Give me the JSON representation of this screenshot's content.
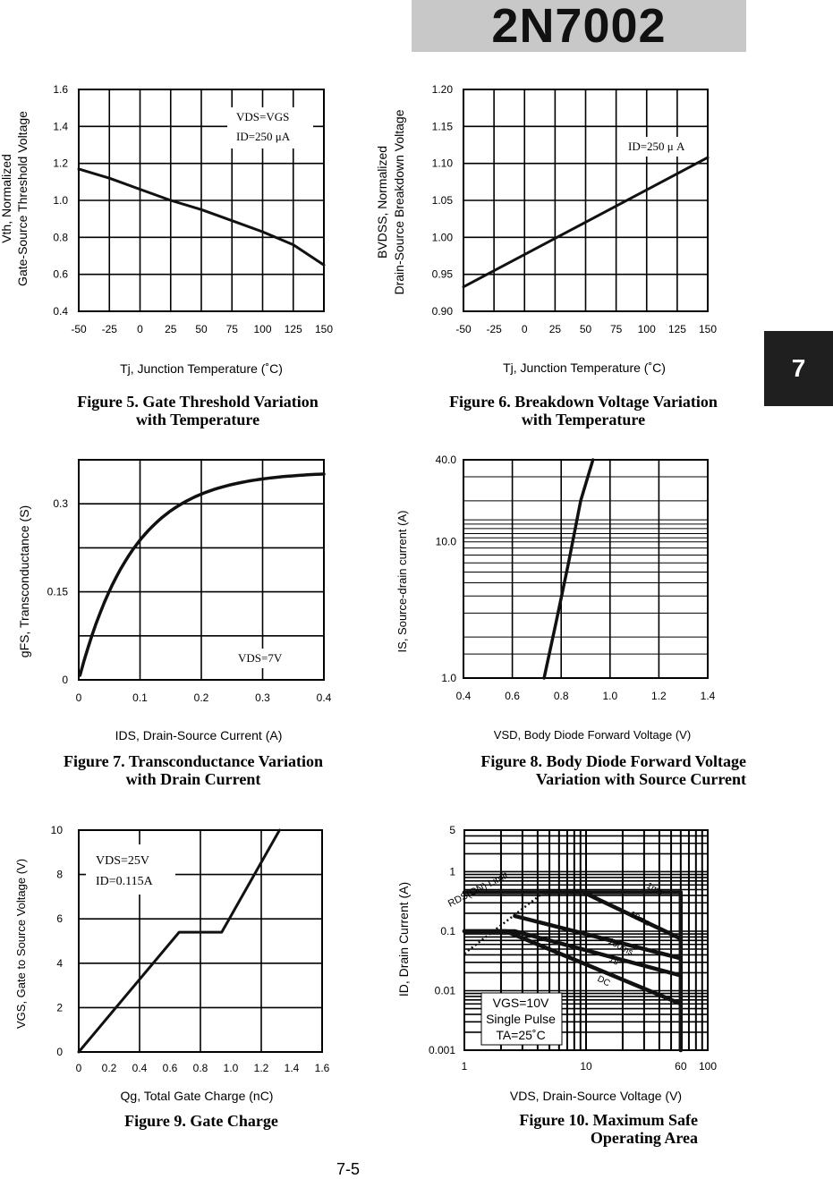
{
  "header": {
    "part_number": "2N7002",
    "section_tab": "7",
    "page_number": "7-5"
  },
  "figures": [
    {
      "caption_line1": "Figure 5. Gate Threshold Variation",
      "caption_line2": "with Temperature",
      "xlabel": "Tj, Junction Temperature (˚C)",
      "ylabel_line1": "Vth, Normalized",
      "ylabel_line2": "Gate-Source Threshold Voltage",
      "note_line1": "VDS=VGS",
      "note_line2": "ID=250 μA"
    },
    {
      "caption_line1": "Figure 6. Breakdown Voltage Variation",
      "caption_line2": "with Temperature",
      "xlabel": "Tj, Junction Temperature (˚C)",
      "ylabel_line1": "BVDSS, Normalized",
      "ylabel_line2": "Drain-Source Breakdown Voltage",
      "note_line1": "ID=250 μ A"
    },
    {
      "caption_line1": "Figure 7. Transconductance Variation",
      "caption_line2": "with Drain Current",
      "xlabel": "IDS, Drain-Source Current (A)",
      "ylabel_line1": "gFS, Transconductance (S)",
      "note_line1": "VDS=7V"
    },
    {
      "caption_line1": "Figure 8. Body Diode Forward Voltage",
      "caption_line2": "Variation with Source Current",
      "xlabel": "VSD, Body Diode Forward Voltage (V)",
      "ylabel_line1": "IS, Source-drain current (A)"
    },
    {
      "caption_line1": "Figure 9. Gate Charge",
      "caption_line2": "",
      "xlabel": "Qg, Total Gate Charge (nC)",
      "ylabel_line1": "VGS, Gate to Source Voltage (V)",
      "note_line1": "VDS=25V",
      "note_line2": "ID=0.115A"
    },
    {
      "caption_line1": "Figure 10. Maximum Safe",
      "caption_line2": "Operating Area",
      "xlabel": "VDS, Drain-Source Voltage (V)",
      "ylabel_line1": "ID, Drain Current (A)",
      "note_line1": "VGS=10V",
      "note_line2": "Single Pulse",
      "note_line3": "TA=25˚C",
      "curve_labels": [
        "RDS(ON) Limit",
        "1ms",
        "10ms",
        "100ms",
        "1s",
        "DC"
      ]
    }
  ],
  "chart_data": [
    {
      "type": "line",
      "title": "Figure 5. Gate Threshold Variation with Temperature",
      "x": [
        -50,
        -25,
        0,
        25,
        50,
        75,
        100,
        125,
        150
      ],
      "y": [
        1.17,
        1.12,
        1.06,
        1.0,
        0.95,
        0.89,
        0.83,
        0.76,
        0.65
      ],
      "xlim": [
        -50,
        150
      ],
      "ylim": [
        0.4,
        1.6
      ],
      "xticks": [
        "-50",
        "-25",
        "0",
        "25",
        "50",
        "75",
        "100",
        "125",
        "150"
      ],
      "yticks": [
        "0.4",
        "0.6",
        "0.8",
        "1.0",
        "1.2",
        "1.4",
        "1.6"
      ]
    },
    {
      "type": "line",
      "title": "Figure 6. Breakdown Voltage Variation with Temperature",
      "x": [
        -50,
        150
      ],
      "y": [
        0.933,
        1.108
      ],
      "xlim": [
        -50,
        150
      ],
      "ylim": [
        0.9,
        1.2
      ],
      "xticks": [
        "-50",
        "-25",
        "0",
        "25",
        "50",
        "75",
        "100",
        "125",
        "150"
      ],
      "yticks": [
        "0.90",
        "0.95",
        "1.00",
        "1.05",
        "1.10",
        "1.15",
        "1.20"
      ]
    },
    {
      "type": "line",
      "title": "Figure 7. Transconductance Variation with Drain Current",
      "x": [
        0.002,
        0.01,
        0.025,
        0.05,
        0.1,
        0.15,
        0.2,
        0.25,
        0.3,
        0.35,
        0.4
      ],
      "y": [
        0.0,
        0.05,
        0.1,
        0.155,
        0.228,
        0.27,
        0.3,
        0.32,
        0.337,
        0.347,
        0.351
      ],
      "xlim": [
        0,
        0.4
      ],
      "ylim": [
        0,
        0.375
      ],
      "xticks": [
        "0",
        "0.1",
        "0.2",
        "0.3",
        "0.4"
      ],
      "yticks": [
        "0",
        "0.15",
        "0.3"
      ]
    },
    {
      "type": "line",
      "title": "Figure 8. Body Diode Forward Voltage Variation with Source Current",
      "x": [
        0.73,
        0.78,
        0.83,
        0.88,
        0.93
      ],
      "y": [
        1.0,
        2.6,
        7.0,
        20.0,
        40.0
      ],
      "xlim": [
        0.4,
        1.4
      ],
      "ylim": [
        1.0,
        40.0
      ],
      "yscale": "log",
      "xticks": [
        "0.4",
        "0.6",
        "0.8",
        "1.0",
        "1.2",
        "1.4"
      ],
      "yticks": [
        "1.0",
        "10.0",
        "40.0"
      ]
    },
    {
      "type": "line",
      "title": "Figure 9. Gate Charge",
      "x": [
        0,
        0.66,
        0.94,
        1.32
      ],
      "y": [
        0,
        5.4,
        5.4,
        10.0
      ],
      "xlim": [
        0,
        1.6
      ],
      "ylim": [
        0,
        10
      ],
      "xticks": [
        "0",
        "0.2",
        "0.4",
        "0.6",
        "0.8",
        "1.0",
        "1.2",
        "1.4",
        "1.6"
      ],
      "yticks": [
        "0",
        "2",
        "4",
        "6",
        "8",
        "10"
      ]
    },
    {
      "type": "line",
      "title": "Figure 10. Maximum Safe Operating Area",
      "xscale": "log",
      "yscale": "log",
      "xlim": [
        1,
        100
      ],
      "ylim": [
        0.001,
        5
      ],
      "xticks": [
        "1",
        "10",
        "60",
        "100"
      ],
      "yticks": [
        "0.001",
        "0.01",
        "0.1",
        "1",
        "5"
      ],
      "series": [
        {
          "name": "RDS(ON) Limit",
          "x": [
            1,
            4.5
          ],
          "y": [
            0.042,
            0.45
          ]
        },
        {
          "name": "1ms",
          "x": [
            1,
            4.5,
            9.5,
            60
          ],
          "y": [
            0.45,
            0.45,
            0.45,
            0.45
          ]
        },
        {
          "name": "10ms",
          "x": [
            4.5,
            9.5,
            60
          ],
          "y": [
            0.45,
            0.45,
            0.075
          ]
        },
        {
          "name": "100ms",
          "x": [
            2.6,
            60
          ],
          "y": [
            0.18,
            0.035
          ]
        },
        {
          "name": "1s",
          "x": [
            1,
            2.6,
            60
          ],
          "y": [
            0.1,
            0.1,
            0.018
          ]
        },
        {
          "name": "DC",
          "x": [
            1,
            2.2,
            60
          ],
          "y": [
            0.1,
            0.1,
            0.006
          ]
        },
        {
          "name": "60V limit",
          "x": [
            60,
            60
          ],
          "y": [
            0.001,
            0.45
          ]
        }
      ]
    }
  ]
}
